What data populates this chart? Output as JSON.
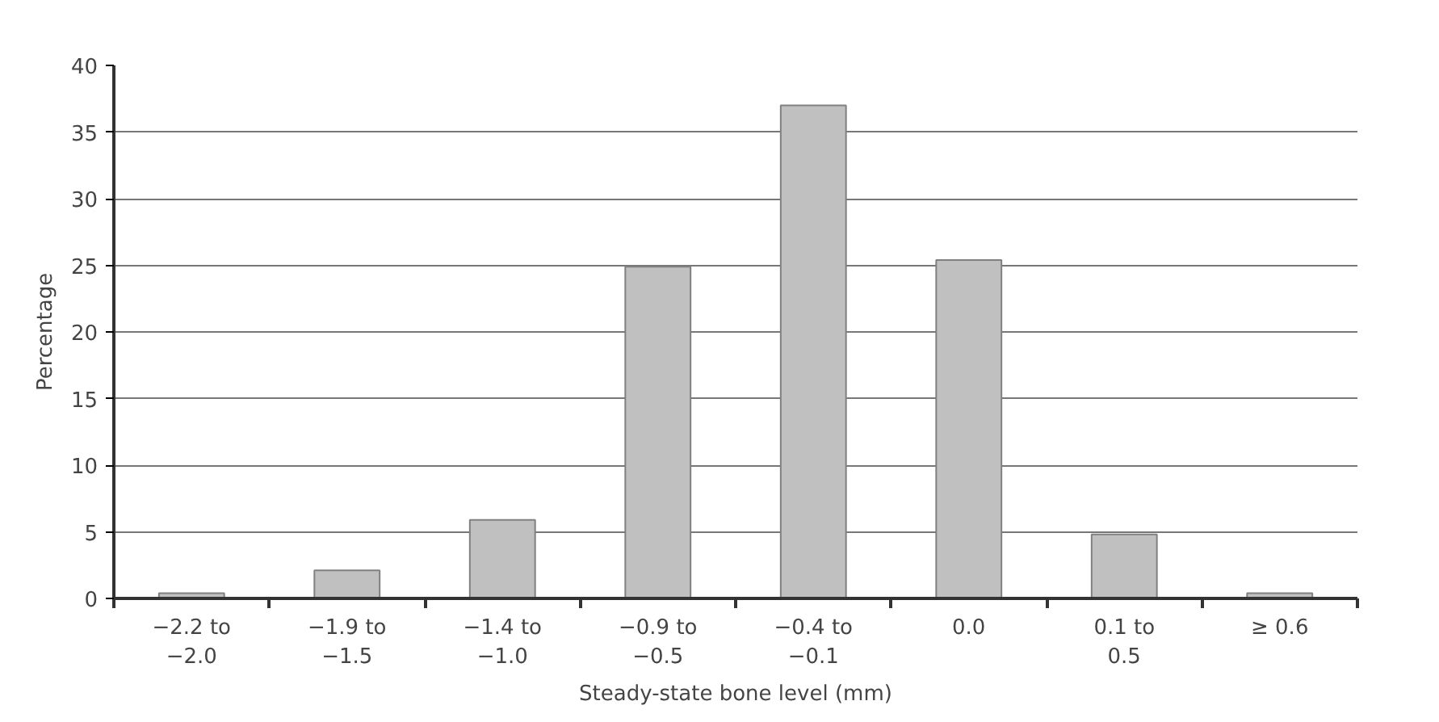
{
  "chart_data": {
    "type": "bar",
    "xlabel": "Steady-state bone level (mm)",
    "ylabel": "Percentage",
    "categories": [
      "−2.2 to\n−2.0",
      "−1.9 to\n−1.5",
      "−1.4 to\n−1.0",
      "−0.9 to\n−0.5",
      "−0.4 to\n−0.1",
      "0.0",
      "0.1 to\n0.5",
      "≥ 0.6"
    ],
    "values": [
      0.4,
      2.1,
      5.9,
      24.9,
      37.0,
      25.4,
      4.8,
      0.4
    ],
    "color": "#c0c0c0",
    "ylim": [
      0,
      40
    ],
    "yticks": [
      0,
      5,
      10,
      15,
      20,
      25,
      30,
      35,
      40
    ],
    "grid": "y"
  }
}
